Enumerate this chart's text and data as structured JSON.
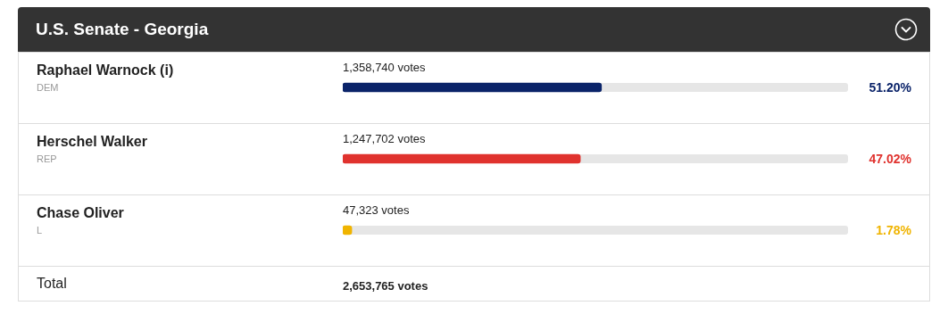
{
  "chart_data": {
    "type": "bar",
    "orientation": "horizontal",
    "title": "U.S. Senate - Georgia",
    "categories": [
      "Raphael Warnock (i)",
      "Herschel Walker",
      "Chase Oliver"
    ],
    "values": [
      51.2,
      47.02,
      1.78
    ],
    "colors": [
      "#0a2369",
      "#e0322e",
      "#f0b400"
    ],
    "value_labels": [
      "51.20%",
      "47.02%",
      "1.78%"
    ],
    "xlim": [
      0,
      100
    ],
    "grid": "y",
    "legend": false,
    "annotations": [
      "1,358,740 votes",
      "1,247,702 votes",
      "47,323 votes",
      "DEM",
      "REP",
      "L",
      "Total",
      "2,653,765 votes"
    ]
  }
}
